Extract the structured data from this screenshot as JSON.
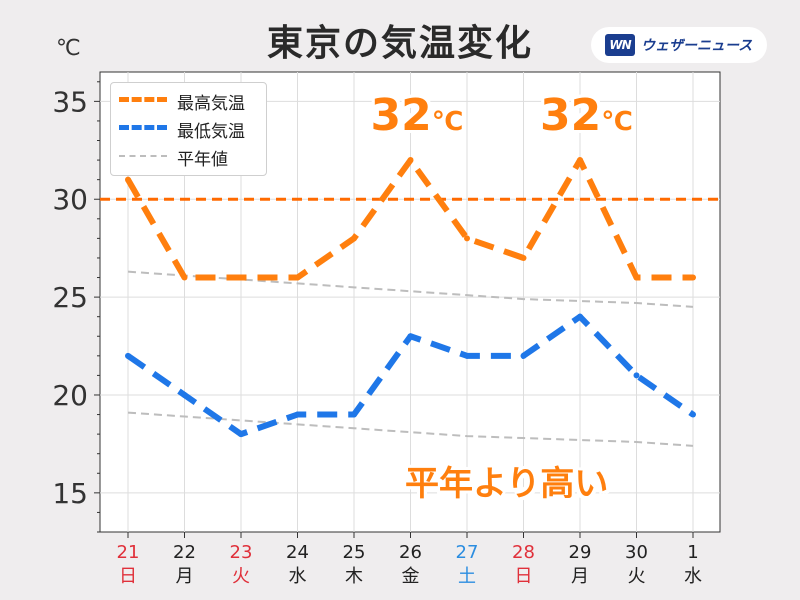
{
  "header": {
    "title": "東京の気温変化",
    "unit": "℃",
    "logo_mark": "WN",
    "logo_text": "ウェザーニュース"
  },
  "colors": {
    "max": "#ff7f0e",
    "min": "#1f77e8",
    "normal": "#bdbdbd",
    "ref": "#ff6a00",
    "weekday": "#222222",
    "sunday_holiday": "#e0303a",
    "saturday": "#2b8de0"
  },
  "callouts": [
    {
      "text": "32",
      "unit": "℃",
      "x_index": 5
    },
    {
      "text": "32",
      "unit": "℃",
      "x_index": 8
    }
  ],
  "banner": "平年より高い",
  "chart_data": {
    "type": "line",
    "x_days": [
      "21",
      "22",
      "23",
      "24",
      "25",
      "26",
      "27",
      "28",
      "29",
      "30",
      "1"
    ],
    "x_weekdays": [
      "日",
      "月",
      "火",
      "水",
      "木",
      "金",
      "土",
      "日",
      "月",
      "火",
      "水"
    ],
    "x_day_types": [
      "holiday",
      "weekday",
      "holiday",
      "weekday",
      "weekday",
      "weekday",
      "saturday",
      "holiday",
      "weekday",
      "weekday",
      "weekday"
    ],
    "ylim": [
      13,
      36.5
    ],
    "yticks": [
      15,
      20,
      25,
      30,
      35
    ],
    "grid": true,
    "legend_position": "top-left",
    "reference_line": 30,
    "series": [
      {
        "name": "最高気温",
        "values": [
          31,
          26,
          26,
          26,
          28,
          32,
          28,
          27,
          32,
          26,
          26
        ]
      },
      {
        "name": "最低気温",
        "values": [
          22,
          20,
          18,
          19,
          19,
          23,
          22,
          22,
          24,
          21,
          19
        ]
      },
      {
        "name": "平年値",
        "values": [
          26.3,
          26.1,
          25.9,
          25.7,
          25.5,
          25.3,
          25.1,
          24.9,
          24.8,
          24.7,
          24.5
        ]
      },
      {
        "values": [
          19.1,
          18.9,
          18.7,
          18.5,
          18.3,
          18.1,
          17.9,
          17.8,
          17.7,
          17.6,
          17.4
        ]
      }
    ]
  }
}
